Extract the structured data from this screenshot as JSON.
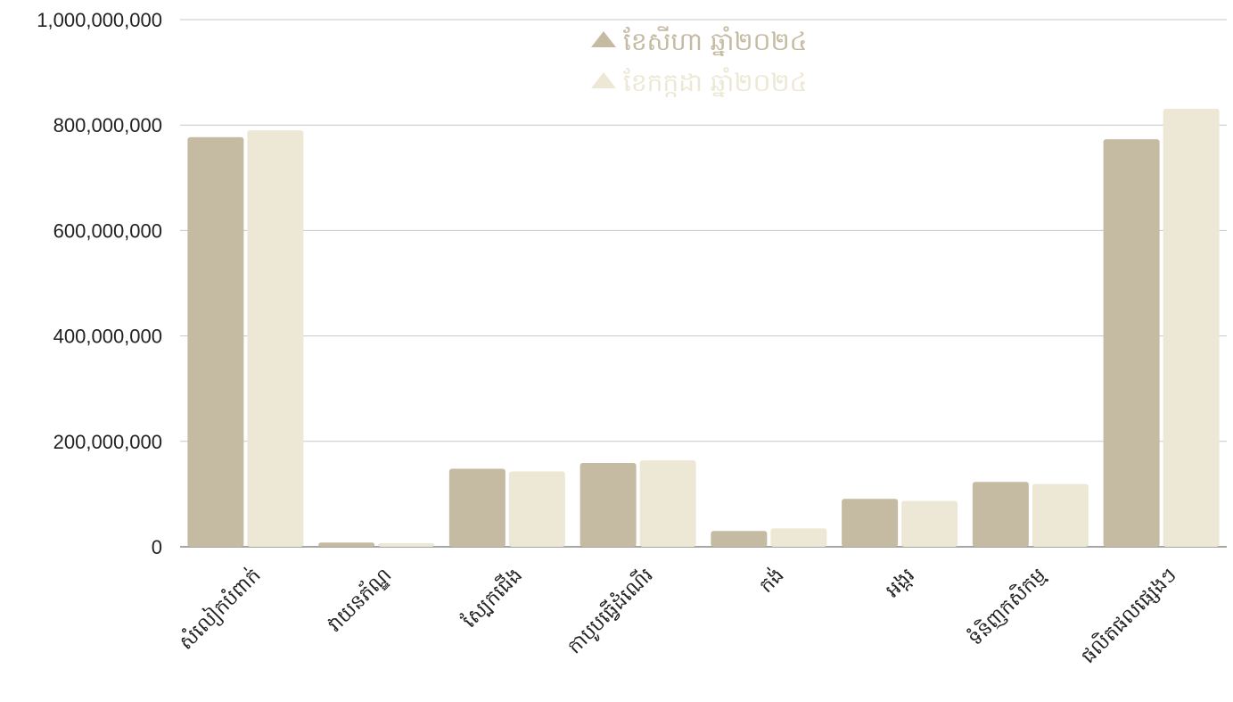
{
  "chart_data": {
    "type": "bar",
    "categories": [
      "សំលៀកបំពាក់",
      "វាយនភ័ណ្ឌ",
      "ស្បែកជើង",
      "កាបូបធ្វើដំណើរ",
      "កង់",
      "អង្ករ",
      "ទំនិញកសិកម្ម",
      "ផលិតផលផ្សេងៗ"
    ],
    "series": [
      {
        "name": "ខែសីហា ឆ្នាំ២០២៤",
        "color": "#c5baa2",
        "values": [
          777000000,
          8000000,
          148000000,
          159000000,
          30000000,
          91000000,
          123000000,
          773000000
        ]
      },
      {
        "name": "ខែកក្កដា ឆ្នាំ២០២៤",
        "color": "#ece8d5",
        "values": [
          790000000,
          7000000,
          143000000,
          164000000,
          35000000,
          87000000,
          119000000,
          831000000
        ]
      }
    ],
    "yticks": [
      "0",
      "200,000,000",
      "400,000,000",
      "600,000,000",
      "800,000,000",
      "1,000,000,000"
    ],
    "ylim": [
      0,
      1000000000
    ],
    "legend_position": "top-center",
    "grid": true
  }
}
